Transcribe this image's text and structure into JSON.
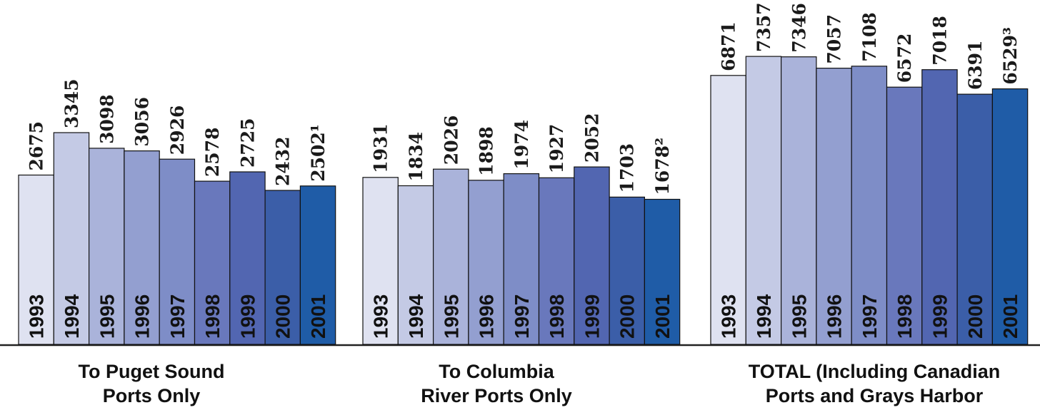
{
  "chart_data": {
    "type": "bar",
    "categories": [
      "1993",
      "1994",
      "1995",
      "1996",
      "1997",
      "1998",
      "1999",
      "2000",
      "2001"
    ],
    "groups": [
      {
        "label_lines": [
          "To Puget Sound",
          "Ports Only"
        ],
        "values": [
          2675,
          3345,
          3098,
          3056,
          2926,
          2578,
          2725,
          2432,
          2502
        ],
        "value_labels": [
          "2675",
          "3345",
          "3098",
          "3056",
          "2926",
          "2578",
          "2725",
          "2432",
          "2502¹"
        ]
      },
      {
        "label_lines": [
          "To Columbia",
          "River Ports Only"
        ],
        "values": [
          1931,
          1834,
          2026,
          1898,
          1974,
          1927,
          2052,
          1703,
          1678
        ],
        "value_labels": [
          "1931",
          "1834",
          "2026",
          "1898",
          "1974",
          "1927",
          "2052",
          "1703",
          "1678²"
        ]
      },
      {
        "label_lines": [
          "TOTAL (Including Canadian",
          "Ports and Grays Harbor"
        ],
        "values": [
          6871,
          7357,
          7346,
          7057,
          7108,
          6572,
          7018,
          6391,
          6529
        ],
        "value_labels": [
          "6871",
          "7357",
          "7346",
          "7057",
          "7108",
          "6572",
          "7018",
          "6391",
          "6529³"
        ]
      }
    ],
    "bar_colors": [
      "#dfe2f1",
      "#c4cae5",
      "#aab3da",
      "#939fd0",
      "#7e8dc7",
      "#6978bc",
      "#5266b1",
      "#3b5ea8",
      "#1f5ca7"
    ]
  }
}
